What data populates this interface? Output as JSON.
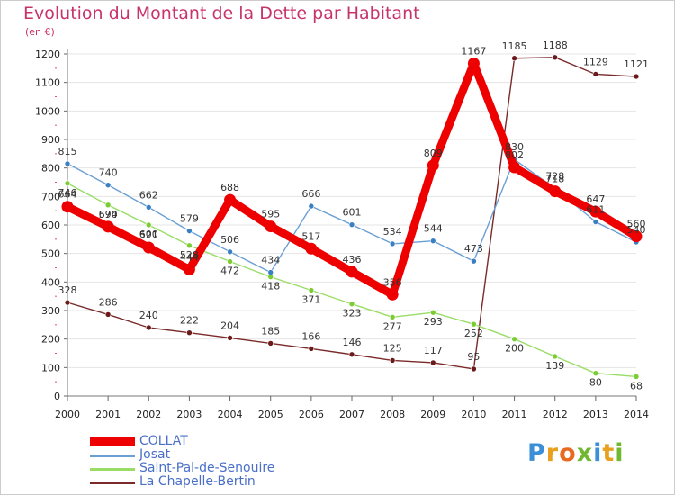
{
  "title": "Evolution du Montant de la Dette par Habitant",
  "unit": "(en €)",
  "logo": {
    "letters": [
      "P",
      "r",
      "o",
      "x",
      "i",
      "t",
      "i"
    ],
    "colors": [
      "#3a8fd8",
      "#e8a020",
      "#e86a20",
      "#70b830",
      "#3a8fd8",
      "#e8a020",
      "#70b830"
    ]
  },
  "chart_data": {
    "type": "line",
    "x": [
      2000,
      2001,
      2002,
      2003,
      2004,
      2005,
      2006,
      2007,
      2008,
      2009,
      2010,
      2011,
      2012,
      2013,
      2014
    ],
    "x_tick_labels": [
      "2000",
      "2001",
      "2002",
      "2003",
      "2004",
      "2005",
      "2006",
      "2007",
      "2008",
      "2009",
      "2010",
      "2011",
      "2012",
      "2013",
      "2014"
    ],
    "ylim": [
      0,
      1200
    ],
    "y_ticks": [
      0,
      100,
      200,
      300,
      400,
      500,
      600,
      700,
      800,
      900,
      1000,
      1100,
      1200
    ],
    "y_tick_labels": [
      "0",
      "100",
      "200",
      "300",
      "400",
      "500",
      "600",
      "700",
      "800",
      "900",
      "1000",
      "1100",
      "1200"
    ],
    "grid": "y",
    "legend_position": "bottom-left",
    "series": [
      {
        "name": "La Chapelle-Bertin",
        "color": "#7a2a2a",
        "marker": "#6a1a1a",
        "values": [
          328,
          286,
          240,
          222,
          204,
          185,
          166,
          146,
          125,
          117,
          95,
          1185,
          1188,
          1129,
          1121
        ],
        "labels": [
          "328",
          "286",
          "240",
          "222",
          "204",
          "185",
          "166",
          "146",
          "125",
          "117",
          "95",
          "1185",
          "1188",
          "1129",
          "1121"
        ]
      },
      {
        "name": "Saint-Pal-de-Senouire",
        "color": "#99dd66",
        "marker": "#7ccc33",
        "values": [
          746,
          670,
          600,
          528,
          472,
          418,
          371,
          323,
          277,
          293,
          252,
          200,
          139,
          80,
          68
        ],
        "labels": [
          "746",
          "670",
          "600",
          "528",
          "472",
          "418",
          "371",
          "323",
          "277",
          "293",
          "252",
          "200",
          "139",
          "80",
          "68"
        ]
      },
      {
        "name": "Josat",
        "color": "#6a9fd4",
        "marker": "#3a7fc4",
        "values": [
          815,
          740,
          662,
          579,
          506,
          434,
          666,
          601,
          534,
          544,
          473,
          830,
          728,
          611,
          540
        ],
        "labels": [
          "815",
          "740",
          "662",
          "579",
          "506",
          "434",
          "666",
          "601",
          "534",
          "544",
          "473",
          "830",
          "728",
          "611",
          "540"
        ]
      },
      {
        "name": "COLLAT",
        "color": "#ee0000",
        "marker": "#ee0000",
        "values": [
          664,
          594,
          521,
          444,
          688,
          595,
          517,
          436,
          356,
          809,
          1167,
          802,
          718,
          647,
          560
        ],
        "labels": [
          "664",
          "594",
          "521",
          "444",
          "688",
          "595",
          "517",
          "436",
          "356",
          "809",
          "1167",
          "802",
          "718",
          "647",
          "560"
        ]
      }
    ],
    "legend_order": [
      "COLLAT",
      "Josat",
      "Saint-Pal-de-Senouire",
      "La Chapelle-Bertin"
    ]
  }
}
